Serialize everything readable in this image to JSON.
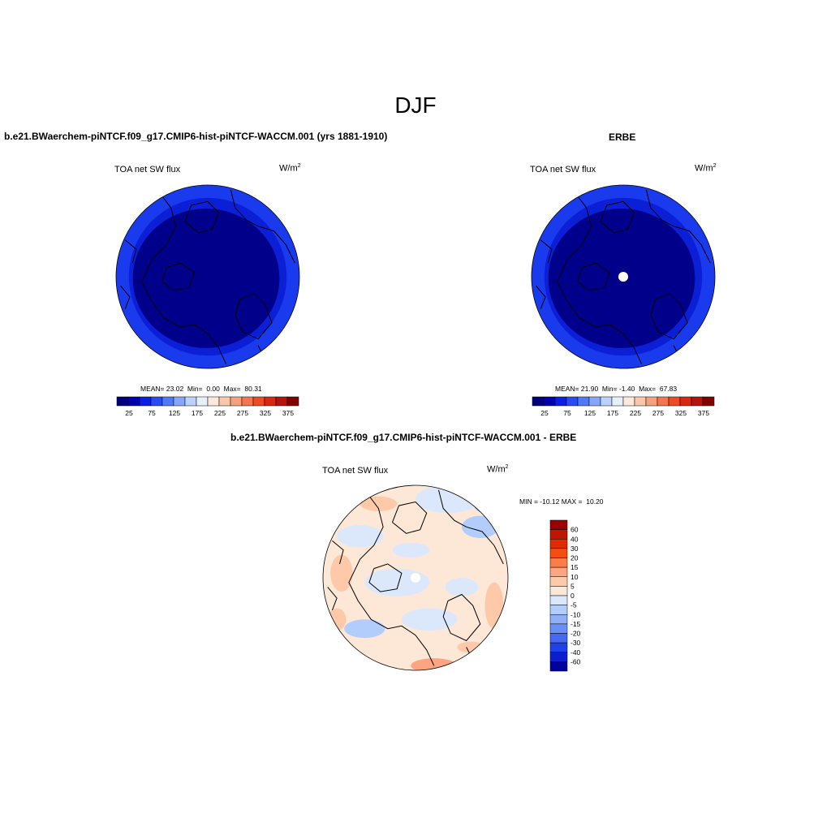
{
  "page": {
    "title": "DJF"
  },
  "panels": [
    {
      "title": "b.e21.BWaerchem-piNTCF.f09_g17.CMIP6-hist-piNTCF-WACCM.001 (yrs 1881-1910)",
      "variable": "TOA net SW flux",
      "units": "W/m",
      "units_exp": "2",
      "stats": {
        "mean_label": "MEAN=",
        "mean": "23.02",
        "min_label": "Min=",
        "min": "0.00",
        "max_label": "Max=",
        "max": "80.31"
      },
      "pole_gap": false
    },
    {
      "title": "ERBE",
      "variable": "TOA net SW flux",
      "units": "W/m",
      "units_exp": "2",
      "stats": {
        "mean_label": "MEAN=",
        "mean": "21.90",
        "min_label": "Min=",
        "min": "-1.40",
        "max_label": "Max=",
        "max": "67.83"
      },
      "pole_gap": true
    },
    {
      "title": "b.e21.BWaerchem-piNTCF.f09_g17.CMIP6-hist-piNTCF-WACCM.001 - ERBE",
      "variable": "TOA net SW flux",
      "units": "W/m",
      "units_exp": "2",
      "stats": {
        "min_label": "MIN =",
        "min": "-10.12",
        "max_label": "MAX =",
        "max": "10.20"
      },
      "pole_gap": true
    }
  ],
  "chart_data": [
    {
      "type": "heatmap",
      "projection": "north polar stereographic",
      "title": "b.e21.BWaerchem-piNTCF.f09_g17.CMIP6-hist-piNTCF-WACCM.001 (yrs 1881-1910)",
      "variable": "TOA net SW flux",
      "units": "W/m2",
      "colorbar_ticks": [
        "25",
        "75",
        "125",
        "175",
        "225",
        "275",
        "325",
        "375"
      ],
      "colorbar_colors": [
        "#00007f",
        "#0000b0",
        "#0a1ee6",
        "#2a4bf4",
        "#5079f7",
        "#86a6fa",
        "#bcd1fc",
        "#e6f0fd",
        "#fde9dc",
        "#fbc6aa",
        "#f8a07a",
        "#f4764c",
        "#ef4a22",
        "#d8280e",
        "#b4140a",
        "#840000"
      ],
      "mean": 23.02,
      "min": 0.0,
      "max": 80.31,
      "zones": [
        "#00008a",
        "#0b1fd6",
        "#1a3aee"
      ]
    },
    {
      "type": "heatmap",
      "projection": "north polar stereographic",
      "title": "ERBE",
      "variable": "TOA net SW flux",
      "units": "W/m2",
      "colorbar_ticks": [
        "25",
        "75",
        "125",
        "175",
        "225",
        "275",
        "325",
        "375"
      ],
      "colorbar_colors": [
        "#00007f",
        "#0000b0",
        "#0a1ee6",
        "#2a4bf4",
        "#5079f7",
        "#86a6fa",
        "#bcd1fc",
        "#e6f0fd",
        "#fde9dc",
        "#fbc6aa",
        "#f8a07a",
        "#f4764c",
        "#ef4a22",
        "#d8280e",
        "#b4140a",
        "#840000"
      ],
      "mean": 21.9,
      "min": -1.4,
      "max": 67.83,
      "zones": [
        "#00008a",
        "#0b1fd6",
        "#1a3aee"
      ]
    },
    {
      "type": "heatmap",
      "projection": "north polar stereographic",
      "title": "b.e21.BWaerchem-piNTCF.f09_g17.CMIP6-hist-piNTCF-WACCM.001 - ERBE",
      "variable": "TOA net SW flux",
      "units": "W/m2",
      "colorbar_levels": [
        "60",
        "40",
        "30",
        "20",
        "15",
        "10",
        "5",
        "0",
        "-5",
        "-10",
        "-15",
        "-20",
        "-30",
        "-40",
        "-60"
      ],
      "colorbar_colors": [
        "#9b0000",
        "#c01500",
        "#e02a00",
        "#f64e10",
        "#fa7d4a",
        "#fca580",
        "#fdc9a8",
        "#fde8d8",
        "#dbe8fb",
        "#b2cdfb",
        "#8fb0f9",
        "#6a8ff8",
        "#4668f2",
        "#2040e8",
        "#0b1ed0",
        "#00009a"
      ],
      "min": -10.12,
      "max": 10.2
    }
  ]
}
